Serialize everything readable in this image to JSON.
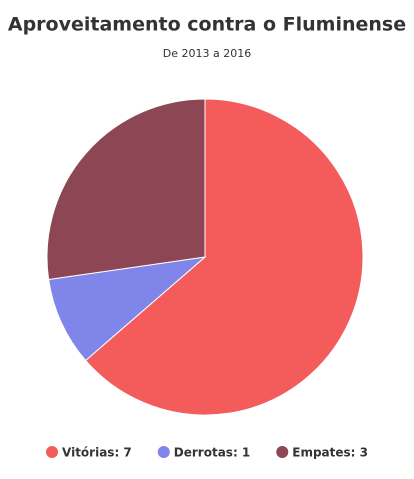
{
  "chart_data": {
    "type": "pie",
    "title": "Aproveitamento contra o Fluminense",
    "subtitle": "De 2013 a 2016",
    "categories": [
      "Vitórias: 7",
      "Derrotas: 1",
      "Empates: 3"
    ],
    "values": [
      7,
      1,
      3
    ],
    "colors": [
      "#f45b5b",
      "#8085e9",
      "#8d4654"
    ],
    "legend": "bottom"
  }
}
